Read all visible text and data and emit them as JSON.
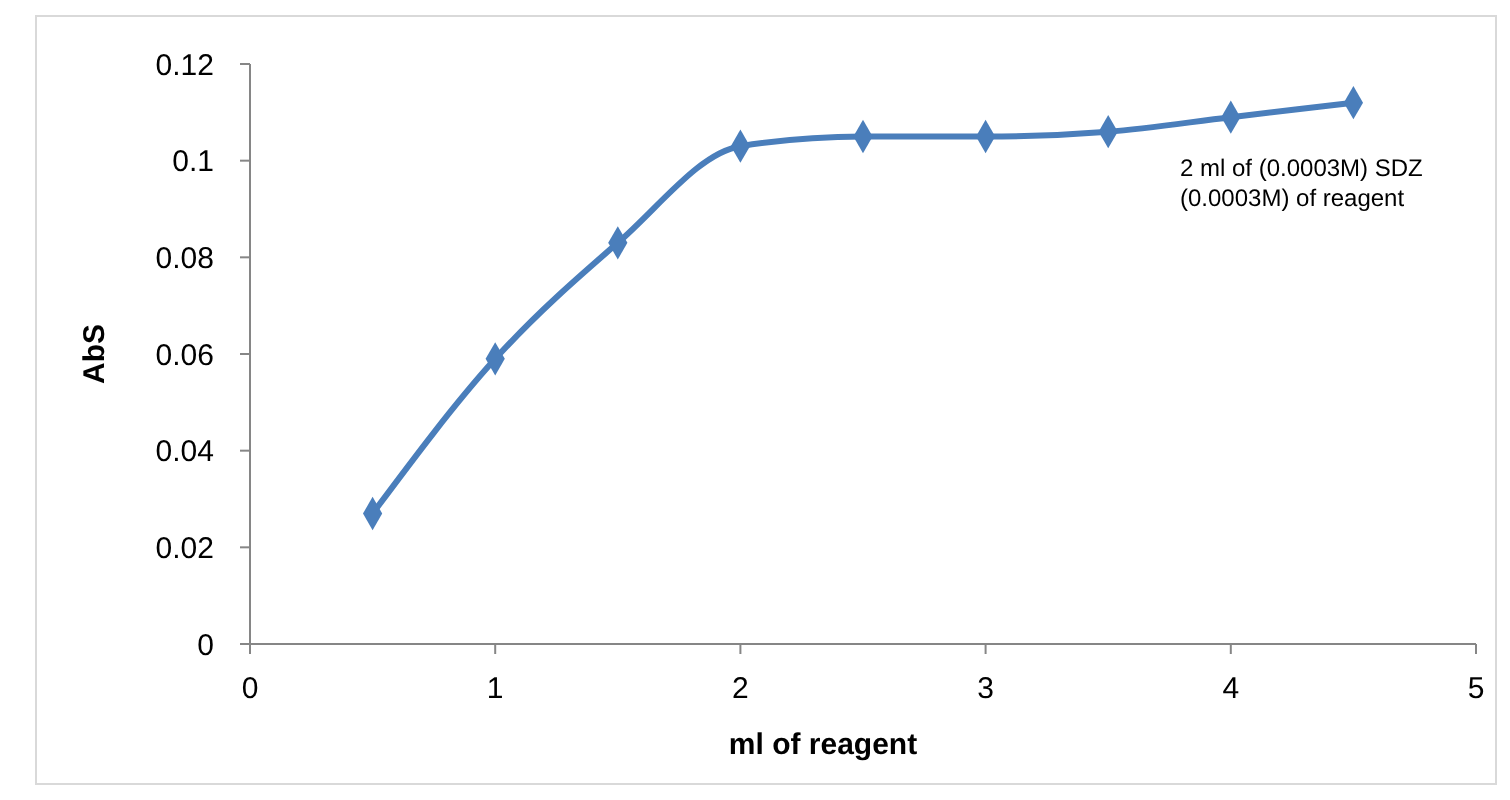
{
  "chart_data": {
    "type": "line",
    "xlabel": "ml of reagent",
    "ylabel": "AbS",
    "x": [
      0.5,
      1,
      1.5,
      2,
      2.5,
      3,
      3.5,
      4,
      4.5
    ],
    "series": [
      {
        "color": "#4a7ebb",
        "values": [
          0.027,
          0.059,
          0.083,
          0.103,
          0.105,
          0.105,
          0.106,
          0.109,
          0.112
        ]
      }
    ],
    "xlim": [
      0,
      5
    ],
    "xticks": [
      0,
      1,
      2,
      3,
      4,
      5
    ],
    "ylim": [
      0,
      0.12
    ],
    "yticks": [
      0,
      0.02,
      0.04,
      0.06,
      0.08,
      0.1,
      0.12
    ],
    "grid": false,
    "marker": "diamond",
    "line_style": "solid",
    "annotations": [
      "2 ml of (0.0003M) SDZ\n(0.0003M) of reagent"
    ]
  }
}
